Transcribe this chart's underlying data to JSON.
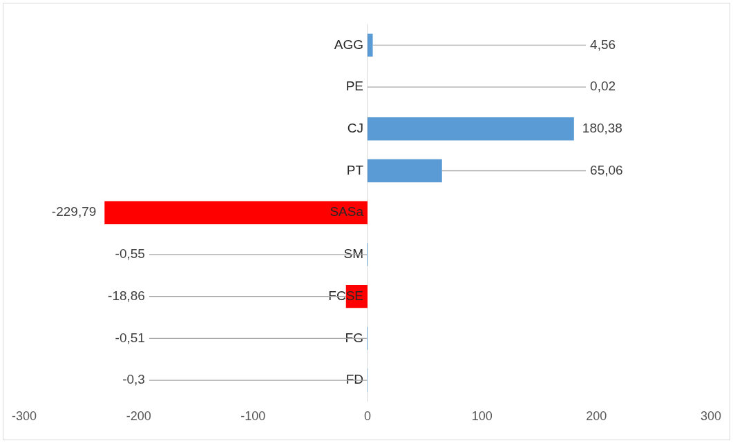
{
  "chart_data": {
    "type": "bar",
    "orientation": "horizontal",
    "categories": [
      "AGG",
      "PE",
      "CJ",
      "PT",
      "SASa",
      "SM",
      "FCSE",
      "FG",
      "FD"
    ],
    "values": [
      4.56,
      0.02,
      180.38,
      65.06,
      -229.79,
      -0.55,
      -18.86,
      -0.51,
      -0.3
    ],
    "colors": [
      "#5b9bd5",
      "#5b9bd5",
      "#5b9bd5",
      "#5b9bd5",
      "#ff0000",
      "#5b9bd5",
      "#ff0000",
      "#5b9bd5",
      "#5b9bd5"
    ],
    "value_labels": [
      "4,56",
      "0,02",
      "180,38",
      "65,06",
      "-229,79",
      "-0,55",
      "-18,86",
      "-0,51",
      "-0,3"
    ],
    "xlim": [
      -300,
      300
    ],
    "xticks": [
      -300,
      -200,
      -100,
      0,
      100,
      200,
      300
    ],
    "grid": false,
    "legend": false
  }
}
